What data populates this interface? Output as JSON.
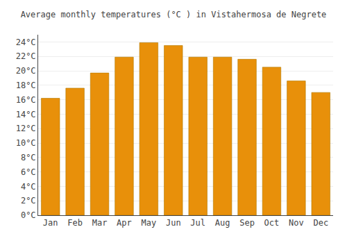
{
  "chart_data": {
    "type": "bar",
    "title": "Average monthly temperatures (°C ) in Vistahermosa de Negrete",
    "categories": [
      "Jan",
      "Feb",
      "Mar",
      "Apr",
      "May",
      "Jun",
      "Jul",
      "Aug",
      "Sep",
      "Oct",
      "Nov",
      "Dec"
    ],
    "values": [
      16.2,
      17.6,
      19.7,
      21.9,
      23.9,
      23.5,
      21.9,
      21.9,
      21.6,
      20.5,
      18.6,
      17.0
    ],
    "color": "#E8900A",
    "ylim": [
      0,
      25
    ],
    "yticks": [
      {
        "value": 0,
        "label": "0°C"
      },
      {
        "value": 2,
        "label": "2°C"
      },
      {
        "value": 4,
        "label": "4°C"
      },
      {
        "value": 6,
        "label": "6°C"
      },
      {
        "value": 8,
        "label": "8°C"
      },
      {
        "value": 10,
        "label": "10°C"
      },
      {
        "value": 12,
        "label": "12°C"
      },
      {
        "value": 14,
        "label": "14°C"
      },
      {
        "value": 16,
        "label": "16°C"
      },
      {
        "value": 18,
        "label": "18°C"
      },
      {
        "value": 20,
        "label": "20°C"
      },
      {
        "value": 22,
        "label": "22°C"
      },
      {
        "value": 24,
        "label": "24°C"
      }
    ],
    "grid": true
  }
}
